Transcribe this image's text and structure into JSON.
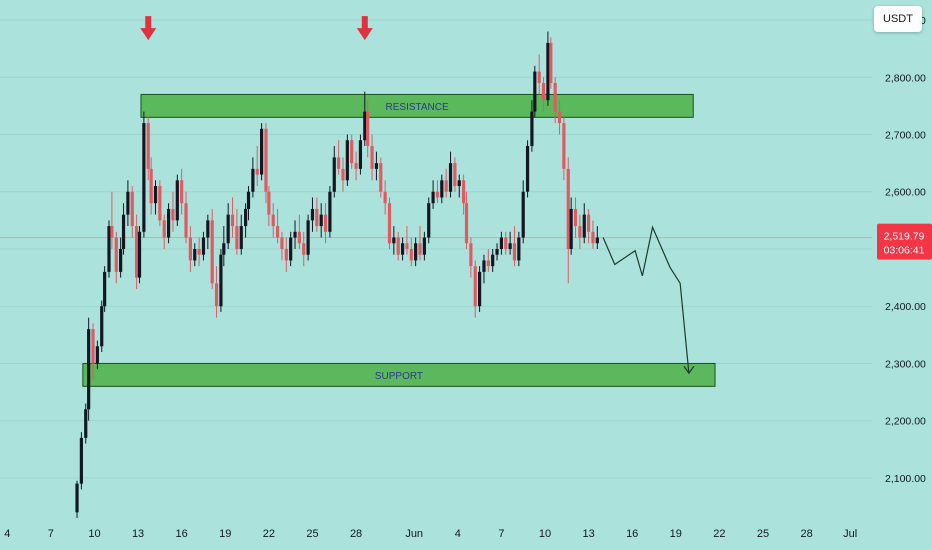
{
  "currency_label": "USDT",
  "chart_data": {
    "type": "candlestick",
    "title": "",
    "xlabel": "",
    "ylabel": "",
    "y_axis_labels": [
      "2,100.00",
      "2,200.00",
      "2,300.00",
      "2,400.00",
      "2,500.00",
      "2,600.00",
      "2,700.00",
      "2,800.00",
      "2,900.00"
    ],
    "y_axis_values": [
      2100,
      2200,
      2300,
      2400,
      2500,
      2600,
      2700,
      2800,
      2900
    ],
    "ylim": [
      2030,
      2935
    ],
    "x_axis_labels": [
      "4",
      "7",
      "10",
      "13",
      "16",
      "19",
      "22",
      "25",
      "28",
      "Jun",
      "4",
      "7",
      "10",
      "13",
      "16",
      "19",
      "22",
      "25",
      "28",
      "Jul"
    ],
    "x_axis_days": [
      0,
      3,
      6,
      9,
      12,
      15,
      18,
      21,
      24,
      28,
      31,
      34,
      37,
      40,
      43,
      46,
      49,
      52,
      55,
      58
    ],
    "xlim": [
      -0.5,
      59.5
    ],
    "last_price": {
      "value": 2519.79,
      "label": "2,519.79",
      "countdown": "03:06:41"
    },
    "zones": [
      {
        "label": "RESISTANCE",
        "low": 2730,
        "high": 2770,
        "start_day": 9.2,
        "end_day": 47.2
      },
      {
        "label": "SUPPORT",
        "low": 2260,
        "high": 2300,
        "start_day": 5.2,
        "end_day": 48.7
      }
    ],
    "markers": [
      {
        "type": "arrow-down",
        "day": 9.7,
        "price": 2865
      },
      {
        "type": "arrow-down",
        "day": 24.6,
        "price": 2865
      },
      {
        "type": "arrow-down",
        "day": 38.6,
        "price": 2940
      }
    ],
    "projection": [
      {
        "day": 41.0,
        "price": 2520
      },
      {
        "day": 41.8,
        "price": 2473
      },
      {
        "day": 43.2,
        "price": 2497
      },
      {
        "day": 43.7,
        "price": 2453
      },
      {
        "day": 44.4,
        "price": 2538
      },
      {
        "day": 45.6,
        "price": 2468
      },
      {
        "day": 46.3,
        "price": 2440
      },
      {
        "day": 46.9,
        "price": 2283
      }
    ],
    "colors": {
      "up": "#131722",
      "down": "#e05a62",
      "zone_fill": "#5cb85c",
      "zone_border": "#1e4f1e",
      "zone_text": "#2a3a8c",
      "arrow": "#e0313f",
      "price_line": "#ef9a9a",
      "price_label": "#f23645",
      "axis_text": "#131722",
      "projection": "#1e3a2a"
    },
    "candles": [
      [
        4.8,
        2040,
        2095,
        2030,
        2090
      ],
      [
        5.1,
        2090,
        2180,
        2080,
        2170
      ],
      [
        5.4,
        2170,
        2230,
        2160,
        2220
      ],
      [
        5.6,
        2220,
        2380,
        2200,
        2360
      ],
      [
        5.9,
        2360,
        2370,
        2270,
        2300
      ],
      [
        6.2,
        2300,
        2340,
        2290,
        2330
      ],
      [
        6.5,
        2330,
        2410,
        2320,
        2400
      ],
      [
        6.7,
        2400,
        2470,
        2390,
        2460
      ],
      [
        7.0,
        2460,
        2550,
        2450,
        2540
      ],
      [
        7.2,
        2540,
        2600,
        2500,
        2520
      ],
      [
        7.5,
        2520,
        2530,
        2440,
        2460
      ],
      [
        7.8,
        2460,
        2520,
        2450,
        2500
      ],
      [
        8.0,
        2500,
        2580,
        2490,
        2560
      ],
      [
        8.3,
        2560,
        2620,
        2540,
        2600
      ],
      [
        8.6,
        2600,
        2610,
        2520,
        2540
      ],
      [
        8.9,
        2540,
        2560,
        2430,
        2450
      ],
      [
        9.1,
        2450,
        2540,
        2440,
        2530
      ],
      [
        9.4,
        2530,
        2740,
        2520,
        2720
      ],
      [
        9.7,
        2720,
        2730,
        2620,
        2640
      ],
      [
        9.9,
        2640,
        2660,
        2560,
        2580
      ],
      [
        10.2,
        2580,
        2620,
        2560,
        2610
      ],
      [
        10.5,
        2610,
        2620,
        2540,
        2550
      ],
      [
        10.8,
        2550,
        2560,
        2500,
        2520
      ],
      [
        11.1,
        2520,
        2580,
        2510,
        2570
      ],
      [
        11.4,
        2570,
        2600,
        2530,
        2550
      ],
      [
        11.7,
        2550,
        2630,
        2540,
        2620
      ],
      [
        12.0,
        2620,
        2640,
        2560,
        2580
      ],
      [
        12.3,
        2580,
        2600,
        2510,
        2520
      ],
      [
        12.6,
        2520,
        2540,
        2460,
        2480
      ],
      [
        12.9,
        2480,
        2510,
        2470,
        2500
      ],
      [
        13.2,
        2500,
        2520,
        2470,
        2490
      ],
      [
        13.5,
        2490,
        2530,
        2480,
        2520
      ],
      [
        13.8,
        2520,
        2560,
        2500,
        2550
      ],
      [
        14.1,
        2550,
        2570,
        2430,
        2440
      ],
      [
        14.4,
        2440,
        2470,
        2380,
        2400
      ],
      [
        14.7,
        2400,
        2500,
        2390,
        2490
      ],
      [
        14.9,
        2490,
        2540,
        2470,
        2510
      ],
      [
        15.2,
        2510,
        2580,
        2500,
        2560
      ],
      [
        15.5,
        2560,
        2590,
        2520,
        2540
      ],
      [
        15.8,
        2540,
        2570,
        2490,
        2500
      ],
      [
        16.1,
        2500,
        2560,
        2490,
        2540
      ],
      [
        16.4,
        2540,
        2580,
        2520,
        2570
      ],
      [
        16.6,
        2570,
        2610,
        2550,
        2600
      ],
      [
        16.9,
        2600,
        2660,
        2590,
        2640
      ],
      [
        17.2,
        2640,
        2680,
        2610,
        2630
      ],
      [
        17.5,
        2630,
        2720,
        2620,
        2710
      ],
      [
        17.8,
        2710,
        2720,
        2580,
        2600
      ],
      [
        18.0,
        2600,
        2610,
        2540,
        2560
      ],
      [
        18.3,
        2560,
        2580,
        2520,
        2540
      ],
      [
        18.6,
        2540,
        2570,
        2510,
        2520
      ],
      [
        18.9,
        2520,
        2530,
        2480,
        2500
      ],
      [
        19.2,
        2500,
        2520,
        2460,
        2480
      ],
      [
        19.5,
        2480,
        2530,
        2470,
        2520
      ],
      [
        19.8,
        2520,
        2550,
        2500,
        2530
      ],
      [
        20.1,
        2530,
        2560,
        2500,
        2510
      ],
      [
        20.4,
        2510,
        2530,
        2470,
        2490
      ],
      [
        20.7,
        2490,
        2560,
        2480,
        2550
      ],
      [
        21.0,
        2550,
        2590,
        2530,
        2570
      ],
      [
        21.3,
        2570,
        2590,
        2530,
        2540
      ],
      [
        21.6,
        2540,
        2580,
        2520,
        2560
      ],
      [
        21.9,
        2560,
        2580,
        2510,
        2530
      ],
      [
        22.2,
        2530,
        2610,
        2520,
        2600
      ],
      [
        22.5,
        2600,
        2680,
        2590,
        2660
      ],
      [
        22.8,
        2660,
        2690,
        2630,
        2640
      ],
      [
        23.1,
        2640,
        2660,
        2600,
        2620
      ],
      [
        23.4,
        2620,
        2700,
        2610,
        2690
      ],
      [
        23.7,
        2690,
        2700,
        2640,
        2650
      ],
      [
        24.0,
        2650,
        2670,
        2620,
        2640
      ],
      [
        24.3,
        2640,
        2700,
        2630,
        2690
      ],
      [
        24.6,
        2690,
        2775,
        2680,
        2740
      ],
      [
        24.8,
        2740,
        2760,
        2660,
        2680
      ],
      [
        25.1,
        2680,
        2700,
        2620,
        2640
      ],
      [
        25.4,
        2640,
        2670,
        2620,
        2650
      ],
      [
        25.7,
        2650,
        2660,
        2590,
        2600
      ],
      [
        26.0,
        2600,
        2620,
        2560,
        2580
      ],
      [
        26.3,
        2580,
        2590,
        2500,
        2510
      ],
      [
        26.6,
        2510,
        2540,
        2490,
        2520
      ],
      [
        26.9,
        2520,
        2530,
        2480,
        2490
      ],
      [
        27.2,
        2490,
        2520,
        2480,
        2510
      ],
      [
        27.5,
        2510,
        2540,
        2490,
        2500
      ],
      [
        27.8,
        2500,
        2520,
        2470,
        2480
      ],
      [
        28.1,
        2480,
        2520,
        2470,
        2510
      ],
      [
        28.4,
        2510,
        2540,
        2480,
        2490
      ],
      [
        28.7,
        2490,
        2530,
        2480,
        2520
      ],
      [
        29.0,
        2520,
        2590,
        2510,
        2580
      ],
      [
        29.3,
        2580,
        2620,
        2570,
        2600
      ],
      [
        29.6,
        2600,
        2620,
        2580,
        2590
      ],
      [
        29.9,
        2590,
        2630,
        2580,
        2620
      ],
      [
        30.2,
        2620,
        2640,
        2590,
        2600
      ],
      [
        30.5,
        2600,
        2670,
        2590,
        2650
      ],
      [
        30.8,
        2650,
        2660,
        2600,
        2610
      ],
      [
        31.1,
        2610,
        2630,
        2590,
        2620
      ],
      [
        31.4,
        2620,
        2630,
        2560,
        2580
      ],
      [
        31.6,
        2580,
        2600,
        2500,
        2510
      ],
      [
        31.9,
        2510,
        2520,
        2450,
        2470
      ],
      [
        32.2,
        2470,
        2480,
        2380,
        2400
      ],
      [
        32.5,
        2400,
        2470,
        2390,
        2460
      ],
      [
        32.8,
        2460,
        2490,
        2440,
        2480
      ],
      [
        33.1,
        2480,
        2500,
        2460,
        2470
      ],
      [
        33.4,
        2470,
        2500,
        2460,
        2490
      ],
      [
        33.7,
        2490,
        2510,
        2480,
        2500
      ],
      [
        34.0,
        2500,
        2530,
        2490,
        2520
      ],
      [
        34.3,
        2520,
        2530,
        2490,
        2500
      ],
      [
        34.6,
        2500,
        2530,
        2490,
        2510
      ],
      [
        34.9,
        2510,
        2540,
        2470,
        2480
      ],
      [
        35.2,
        2480,
        2530,
        2470,
        2520
      ],
      [
        35.5,
        2520,
        2620,
        2510,
        2600
      ],
      [
        35.8,
        2600,
        2690,
        2590,
        2680
      ],
      [
        36.1,
        2680,
        2760,
        2670,
        2740
      ],
      [
        36.3,
        2740,
        2820,
        2730,
        2810
      ],
      [
        36.6,
        2810,
        2840,
        2770,
        2790
      ],
      [
        36.9,
        2790,
        2800,
        2740,
        2760
      ],
      [
        37.2,
        2760,
        2880,
        2750,
        2860
      ],
      [
        37.4,
        2860,
        2870,
        2780,
        2790
      ],
      [
        37.7,
        2790,
        2800,
        2720,
        2740
      ],
      [
        38.0,
        2740,
        2760,
        2700,
        2720
      ],
      [
        38.3,
        2720,
        2730,
        2620,
        2640
      ],
      [
        38.6,
        2640,
        2660,
        2440,
        2500
      ],
      [
        38.8,
        2500,
        2590,
        2490,
        2570
      ],
      [
        39.1,
        2570,
        2590,
        2520,
        2540
      ],
      [
        39.4,
        2540,
        2560,
        2500,
        2520
      ],
      [
        39.7,
        2520,
        2580,
        2510,
        2560
      ],
      [
        40.0,
        2560,
        2570,
        2510,
        2530
      ],
      [
        40.3,
        2530,
        2550,
        2500,
        2510
      ],
      [
        40.6,
        2510,
        2540,
        2500,
        2520
      ]
    ]
  }
}
